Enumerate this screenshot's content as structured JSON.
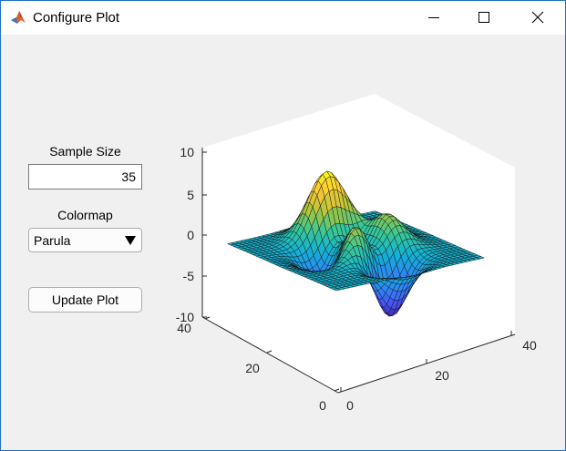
{
  "window": {
    "title": "Configure Plot",
    "icons": {
      "app": "matlab-icon",
      "minimize": "minimize-icon",
      "maximize": "maximize-icon",
      "close": "close-icon"
    }
  },
  "controls": {
    "sample_size": {
      "label": "Sample Size",
      "value": "35"
    },
    "colormap": {
      "label": "Colormap",
      "selected": "Parula",
      "icon": "triangle-down-icon"
    },
    "update_button": {
      "label": "Update Plot"
    }
  },
  "chart_data": {
    "type": "surface",
    "function": "peaks",
    "grid_size": 35,
    "colormap": "parula",
    "zlim": [
      -10,
      10
    ],
    "xlim": [
      0,
      40
    ],
    "ylim": [
      0,
      40
    ],
    "z_ticks": [
      "10",
      "5",
      "0",
      "-5",
      "-10"
    ],
    "x_ticks": [
      "0",
      "20",
      "40"
    ],
    "y_ticks": [
      "0",
      "20",
      "40"
    ],
    "grid": false,
    "box": true
  }
}
